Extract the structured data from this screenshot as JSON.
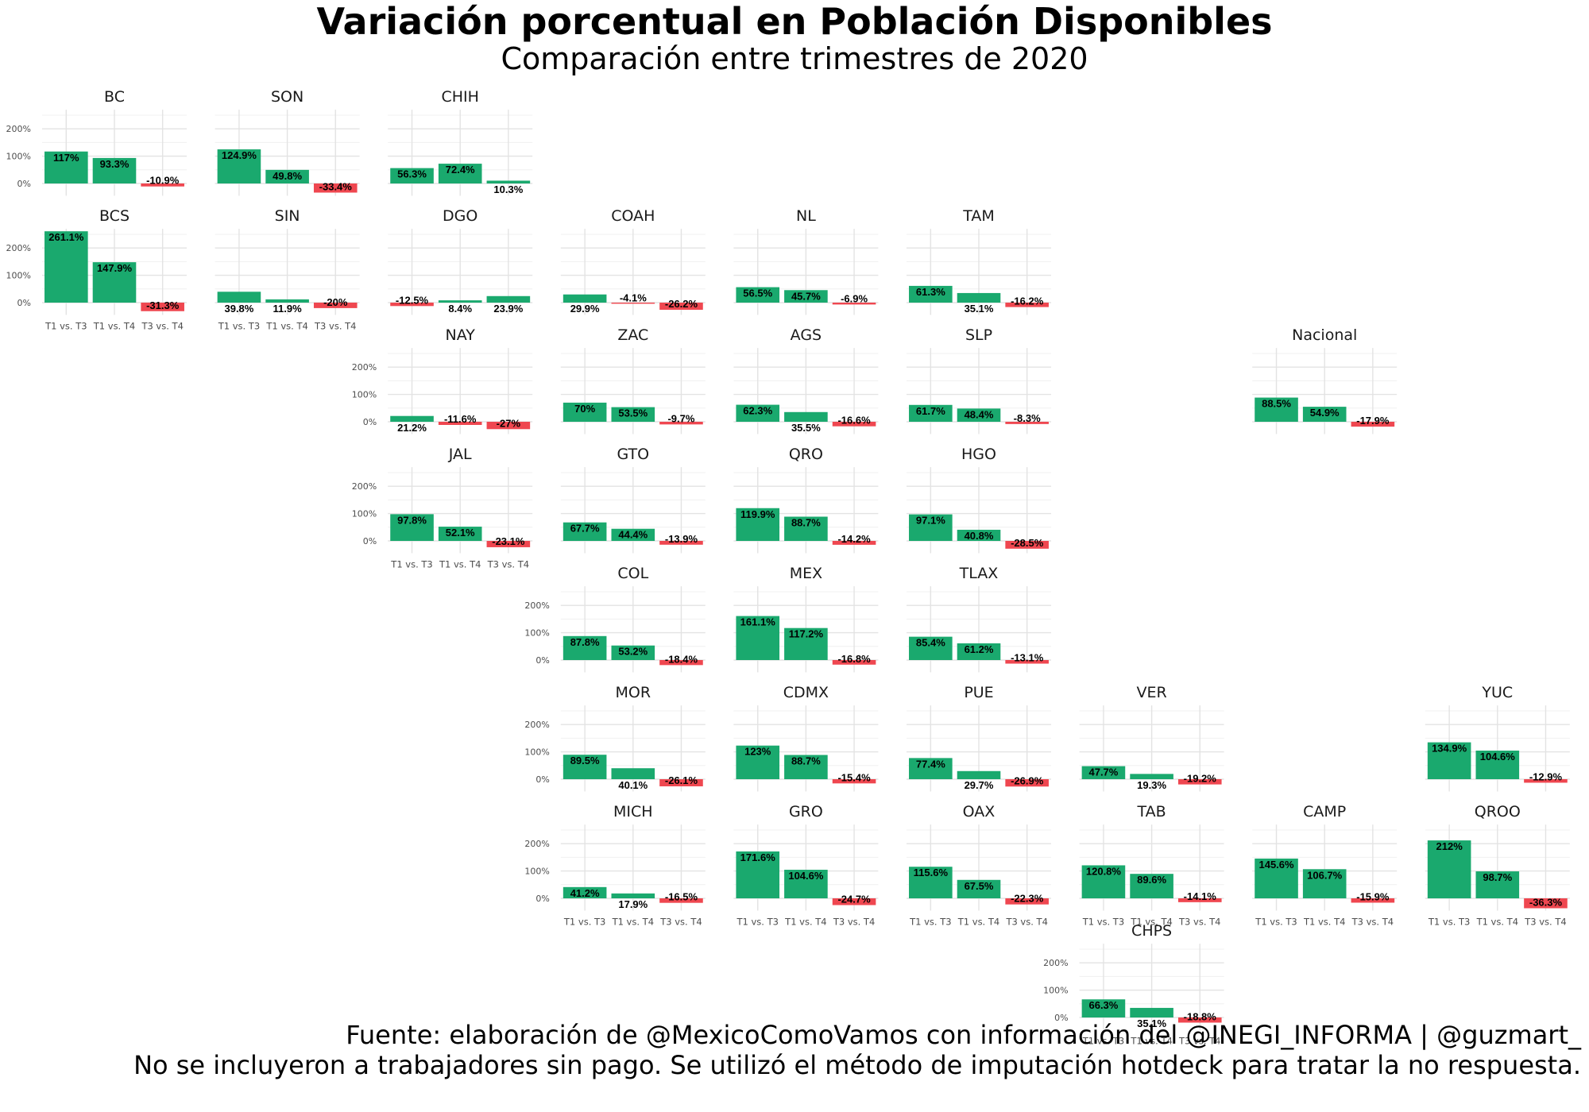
{
  "title": "Variación porcentual en Población Disponibles",
  "subtitle": "Comparación entre trimestres de 2020",
  "caption_line1": "Fuente: elaboración de @MexicoComoVamos con información del @INEGI_INFORMA | @guzmart_",
  "caption_line2": "No se incluyeron a trabajadores sin pago. Se utilizó el método de imputación hotdeck para tratar la no respuesta.",
  "colors": {
    "positive": "#1aa96e",
    "negative": "#ef4750"
  },
  "chart_data": {
    "type": "bar",
    "categories": [
      "T1 vs. T3",
      "T1 vs. T4",
      "T3 vs. T4"
    ],
    "y_ticks": [
      "0%",
      "100%",
      "200%"
    ],
    "ylim": [
      -45,
      270
    ],
    "panels": [
      {
        "name": "BC",
        "values": [
          117,
          93.3,
          -10.9
        ],
        "labels": [
          "117%",
          "93.3%",
          "-10.9%"
        ]
      },
      {
        "name": "SON",
        "values": [
          124.9,
          49.8,
          -33.4
        ],
        "labels": [
          "124.9%",
          "49.8%",
          "-33.4%"
        ]
      },
      {
        "name": "CHIH",
        "values": [
          56.3,
          72.4,
          10.3
        ],
        "labels": [
          "56.3%",
          "72.4%",
          "10.3%"
        ]
      },
      {
        "name": "BCS",
        "values": [
          261.1,
          147.9,
          -31.3
        ],
        "labels": [
          "261.1%",
          "147.9%",
          "-31.3%"
        ]
      },
      {
        "name": "SIN",
        "values": [
          39.8,
          11.9,
          -20
        ],
        "labels": [
          "39.8%",
          "11.9%",
          "-20%"
        ]
      },
      {
        "name": "DGO",
        "values": [
          -12.5,
          8.4,
          23.9
        ],
        "labels": [
          "-12.5%",
          "8.4%",
          "23.9%"
        ]
      },
      {
        "name": "COAH",
        "values": [
          29.9,
          -4.1,
          -26.2
        ],
        "labels": [
          "29.9%",
          "-4.1%",
          "-26.2%"
        ]
      },
      {
        "name": "NL",
        "values": [
          56.5,
          45.7,
          -6.9
        ],
        "labels": [
          "56.5%",
          "45.7%",
          "-6.9%"
        ]
      },
      {
        "name": "TAM",
        "values": [
          61.3,
          35.1,
          -16.2
        ],
        "labels": [
          "61.3%",
          "35.1%",
          "-16.2%"
        ]
      },
      {
        "name": "NAY",
        "values": [
          21.2,
          -11.6,
          -27
        ],
        "labels": [
          "21.2%",
          "-11.6%",
          "-27%"
        ]
      },
      {
        "name": "ZAC",
        "values": [
          70,
          53.5,
          -9.7
        ],
        "labels": [
          "70%",
          "53.5%",
          "-9.7%"
        ]
      },
      {
        "name": "AGS",
        "values": [
          62.3,
          35.5,
          -16.6
        ],
        "labels": [
          "62.3%",
          "35.5%",
          "-16.6%"
        ]
      },
      {
        "name": "SLP",
        "values": [
          61.7,
          48.4,
          -8.3
        ],
        "labels": [
          "61.7%",
          "48.4%",
          "-8.3%"
        ]
      },
      {
        "name": "Nacional",
        "values": [
          88.5,
          54.9,
          -17.9
        ],
        "labels": [
          "88.5%",
          "54.9%",
          "-17.9%"
        ]
      },
      {
        "name": "JAL",
        "values": [
          97.8,
          52.1,
          -23.1
        ],
        "labels": [
          "97.8%",
          "52.1%",
          "-23.1%"
        ]
      },
      {
        "name": "GTO",
        "values": [
          67.7,
          44.4,
          -13.9
        ],
        "labels": [
          "67.7%",
          "44.4%",
          "-13.9%"
        ]
      },
      {
        "name": "QRO",
        "values": [
          119.9,
          88.7,
          -14.2
        ],
        "labels": [
          "119.9%",
          "88.7%",
          "-14.2%"
        ]
      },
      {
        "name": "HGO",
        "values": [
          97.1,
          40.8,
          -28.5
        ],
        "labels": [
          "97.1%",
          "40.8%",
          "-28.5%"
        ]
      },
      {
        "name": "COL",
        "values": [
          87.8,
          53.2,
          -18.4
        ],
        "labels": [
          "87.8%",
          "53.2%",
          "-18.4%"
        ]
      },
      {
        "name": "MEX",
        "values": [
          161.1,
          117.2,
          -16.8
        ],
        "labels": [
          "161.1%",
          "117.2%",
          "-16.8%"
        ]
      },
      {
        "name": "TLAX",
        "values": [
          85.4,
          61.2,
          -13.1
        ],
        "labels": [
          "85.4%",
          "61.2%",
          "-13.1%"
        ]
      },
      {
        "name": "MOR",
        "values": [
          89.5,
          40.1,
          -26.1
        ],
        "labels": [
          "89.5%",
          "40.1%",
          "-26.1%"
        ]
      },
      {
        "name": "CDMX",
        "values": [
          123,
          88.7,
          -15.4
        ],
        "labels": [
          "123%",
          "88.7%",
          "-15.4%"
        ]
      },
      {
        "name": "PUE",
        "values": [
          77.4,
          29.7,
          -26.9
        ],
        "labels": [
          "77.4%",
          "29.7%",
          "-26.9%"
        ]
      },
      {
        "name": "VER",
        "values": [
          47.7,
          19.3,
          -19.2
        ],
        "labels": [
          "47.7%",
          "19.3%",
          "-19.2%"
        ]
      },
      {
        "name": "YUC",
        "values": [
          134.9,
          104.6,
          -12.9
        ],
        "labels": [
          "134.9%",
          "104.6%",
          "-12.9%"
        ]
      },
      {
        "name": "MICH",
        "values": [
          41.2,
          17.9,
          -16.5
        ],
        "labels": [
          "41.2%",
          "17.9%",
          "-16.5%"
        ]
      },
      {
        "name": "GRO",
        "values": [
          171.6,
          104.6,
          -24.7
        ],
        "labels": [
          "171.6%",
          "104.6%",
          "-24.7%"
        ]
      },
      {
        "name": "OAX",
        "values": [
          115.6,
          67.5,
          -22.3
        ],
        "labels": [
          "115.6%",
          "67.5%",
          "-22.3%"
        ]
      },
      {
        "name": "TAB",
        "values": [
          120.8,
          89.6,
          -14.1
        ],
        "labels": [
          "120.8%",
          "89.6%",
          "-14.1%"
        ]
      },
      {
        "name": "CAMP",
        "values": [
          145.6,
          106.7,
          -15.9
        ],
        "labels": [
          "145.6%",
          "106.7%",
          "-15.9%"
        ]
      },
      {
        "name": "QROO",
        "values": [
          212,
          98.7,
          -36.3
        ],
        "labels": [
          "212%",
          "98.7%",
          "-36.3%"
        ]
      },
      {
        "name": "CHPS",
        "values": [
          66.3,
          35.1,
          -18.8
        ],
        "labels": [
          "66.3%",
          "35.1%",
          "-18.8%"
        ]
      }
    ]
  }
}
